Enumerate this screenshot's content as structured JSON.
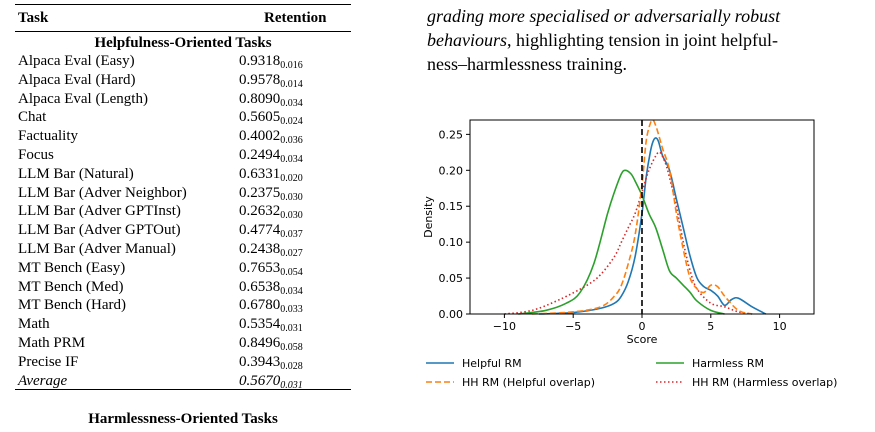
{
  "table": {
    "header": {
      "task": "Task",
      "retention": "Retention"
    },
    "helpfulness_section": "Helpfulness-Oriented Tasks",
    "rows": [
      {
        "task": "Alpaca Eval (Easy)",
        "value": "0.9318",
        "std": "0.016"
      },
      {
        "task": "Alpaca Eval (Hard)",
        "value": "0.9578",
        "std": "0.014"
      },
      {
        "task": "Alpaca Eval (Length)",
        "value": "0.8090",
        "std": "0.034"
      },
      {
        "task": "Chat",
        "value": "0.5605",
        "std": "0.024"
      },
      {
        "task": "Factuality",
        "value": "0.4002",
        "std": "0.036"
      },
      {
        "task": "Focus",
        "value": "0.2494",
        "std": "0.034"
      },
      {
        "task": "LLM Bar (Natural)",
        "value": "0.6331",
        "std": "0.020"
      },
      {
        "task": "LLM Bar (Adver Neighbor)",
        "value": "0.2375",
        "std": "0.030"
      },
      {
        "task": "LLM Bar (Adver GPTInst)",
        "value": "0.2632",
        "std": "0.030"
      },
      {
        "task": "LLM Bar (Adver GPTOut)",
        "value": "0.4774",
        "std": "0.037"
      },
      {
        "task": "LLM Bar (Adver Manual)",
        "value": "0.2438",
        "std": "0.027"
      },
      {
        "task": "MT Bench (Easy)",
        "value": "0.7653",
        "std": "0.054"
      },
      {
        "task": "MT Bench (Med)",
        "value": "0.6538",
        "std": "0.034"
      },
      {
        "task": "MT Bench (Hard)",
        "value": "0.6780",
        "std": "0.033"
      },
      {
        "task": "Math",
        "value": "0.5354",
        "std": "0.031"
      },
      {
        "task": "Math PRM",
        "value": "0.8496",
        "std": "0.058"
      },
      {
        "task": "Precise IF",
        "value": "0.3943",
        "std": "0.028"
      }
    ],
    "average": {
      "task": "Average",
      "value": "0.5670",
      "std": "0.031"
    },
    "harmlessness_section": "Harmlessness-Oriented Tasks"
  },
  "paragraph": {
    "italic_line1": "grading more specialised or adversarially robust",
    "italic_line2": "behaviours",
    "rest_line2": ", highlighting tension in joint helpful-",
    "line3": "ness–harmlessness training."
  },
  "chart_data": {
    "type": "line",
    "xlabel": "Score",
    "ylabel": "Density",
    "xlim": [
      -12.5,
      12.5
    ],
    "ylim": [
      0,
      0.27
    ],
    "xticks": [
      -10,
      -5,
      0,
      5,
      10
    ],
    "xtick_labels": [
      "−10",
      "−5",
      "0",
      "5",
      "10"
    ],
    "yticks": [
      0,
      0.05,
      0.1,
      0.15,
      0.2,
      0.25
    ],
    "ytick_labels": [
      "0.00",
      "0.05",
      "0.10",
      "0.15",
      "0.20",
      "0.25"
    ],
    "vline": {
      "x": 0,
      "style": "dashed",
      "color": "#000000"
    },
    "grid": false,
    "legend_position": "below",
    "series": [
      {
        "name": "Helpful RM",
        "color": "#1f77b4",
        "style": "solid",
        "x": [
          -7.5,
          -5,
          -3,
          -2,
          -1.5,
          -1,
          -0.5,
          0,
          0.3,
          0.6,
          0.8,
          1.0,
          1.2,
          1.5,
          2,
          2.5,
          3,
          3.5,
          4,
          4.5,
          5,
          5.5,
          6,
          6.5,
          7,
          8,
          9
        ],
        "y": [
          0,
          0.002,
          0.008,
          0.015,
          0.025,
          0.045,
          0.08,
          0.14,
          0.19,
          0.225,
          0.24,
          0.245,
          0.24,
          0.22,
          0.2,
          0.16,
          0.12,
          0.08,
          0.05,
          0.038,
          0.033,
          0.025,
          0.012,
          0.02,
          0.022,
          0.01,
          0
        ]
      },
      {
        "name": "Harmless RM",
        "color": "#2ca02c",
        "style": "solid",
        "x": [
          -9,
          -7,
          -5.5,
          -4.5,
          -3.5,
          -2.5,
          -2,
          -1.5,
          -1.2,
          -0.8,
          -0.5,
          0,
          0.5,
          1,
          1.5,
          2,
          2.5,
          3,
          3.5,
          4,
          5,
          6
        ],
        "y": [
          0,
          0.005,
          0.015,
          0.03,
          0.07,
          0.14,
          0.17,
          0.195,
          0.2,
          0.195,
          0.185,
          0.165,
          0.14,
          0.12,
          0.09,
          0.06,
          0.05,
          0.04,
          0.03,
          0.018,
          0.005,
          0
        ]
      },
      {
        "name": "HH RM (Helpful overlap)",
        "color": "#ff7f0e",
        "style": "dashed",
        "x": [
          -8,
          -5,
          -3,
          -2,
          -1.5,
          -1,
          -0.5,
          0,
          0.3,
          0.6,
          0.8,
          1.0,
          1.2,
          1.5,
          2,
          2.5,
          3,
          3.5,
          4,
          4.5,
          5,
          5.5,
          6,
          7,
          8
        ],
        "y": [
          0,
          0.003,
          0.01,
          0.025,
          0.04,
          0.07,
          0.11,
          0.18,
          0.24,
          0.265,
          0.27,
          0.262,
          0.25,
          0.23,
          0.2,
          0.14,
          0.09,
          0.05,
          0.035,
          0.03,
          0.04,
          0.038,
          0.025,
          0.005,
          0
        ]
      },
      {
        "name": "HH RM (Harmless overlap)",
        "color": "#d62728",
        "style": "dotted",
        "x": [
          -10,
          -8,
          -6,
          -4,
          -3,
          -2,
          -1.5,
          -1,
          -0.5,
          0,
          0.5,
          1,
          1.3,
          1.7,
          2,
          2.5,
          3,
          3.5,
          4,
          5,
          6,
          7,
          8
        ],
        "y": [
          0,
          0.005,
          0.02,
          0.04,
          0.055,
          0.08,
          0.1,
          0.12,
          0.14,
          0.17,
          0.2,
          0.22,
          0.225,
          0.21,
          0.19,
          0.15,
          0.1,
          0.06,
          0.035,
          0.015,
          0.01,
          0.003,
          0
        ]
      }
    ]
  }
}
